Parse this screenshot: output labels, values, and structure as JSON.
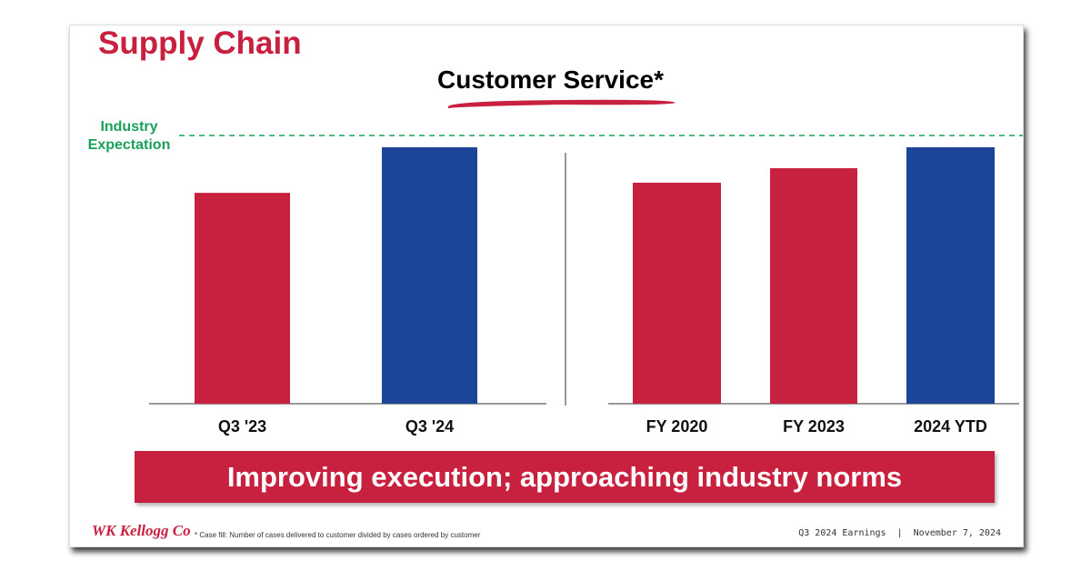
{
  "slide": {
    "title": "Supply Chain",
    "subtitle": "Customer Service*",
    "banner": "Improving execution; approaching industry norms",
    "footnote": "* Case fill: Number of cases delivered to customer divided by cases ordered by customer",
    "footer_right": "Q3 2024 Earnings  |  November 7, 2024",
    "logo": "WK Kellogg Co"
  },
  "chart_data": {
    "type": "bar",
    "title": "Customer Service*",
    "categories": [
      "Q3 '23",
      "Q3 '24",
      "FY 2020",
      "FY 2023",
      "2024 YTD"
    ],
    "groups": [
      [
        "Q3 '23",
        "Q3 '24"
      ],
      [
        "FY 2020",
        "FY 2023",
        "2024 YTD"
      ]
    ],
    "values": [
      78.6,
      95.6,
      82.4,
      87.8,
      95.6
    ],
    "colors": [
      "#c8203f",
      "#1c4599",
      "#c8203f",
      "#c8203f",
      "#1c4599"
    ],
    "reference_line": {
      "label": "Industry Expectation",
      "value": 100,
      "color": "#1aa05a",
      "style": "dashed"
    },
    "ylim": [
      0,
      100
    ],
    "grid": false,
    "xlabel": "",
    "ylabel": ""
  }
}
